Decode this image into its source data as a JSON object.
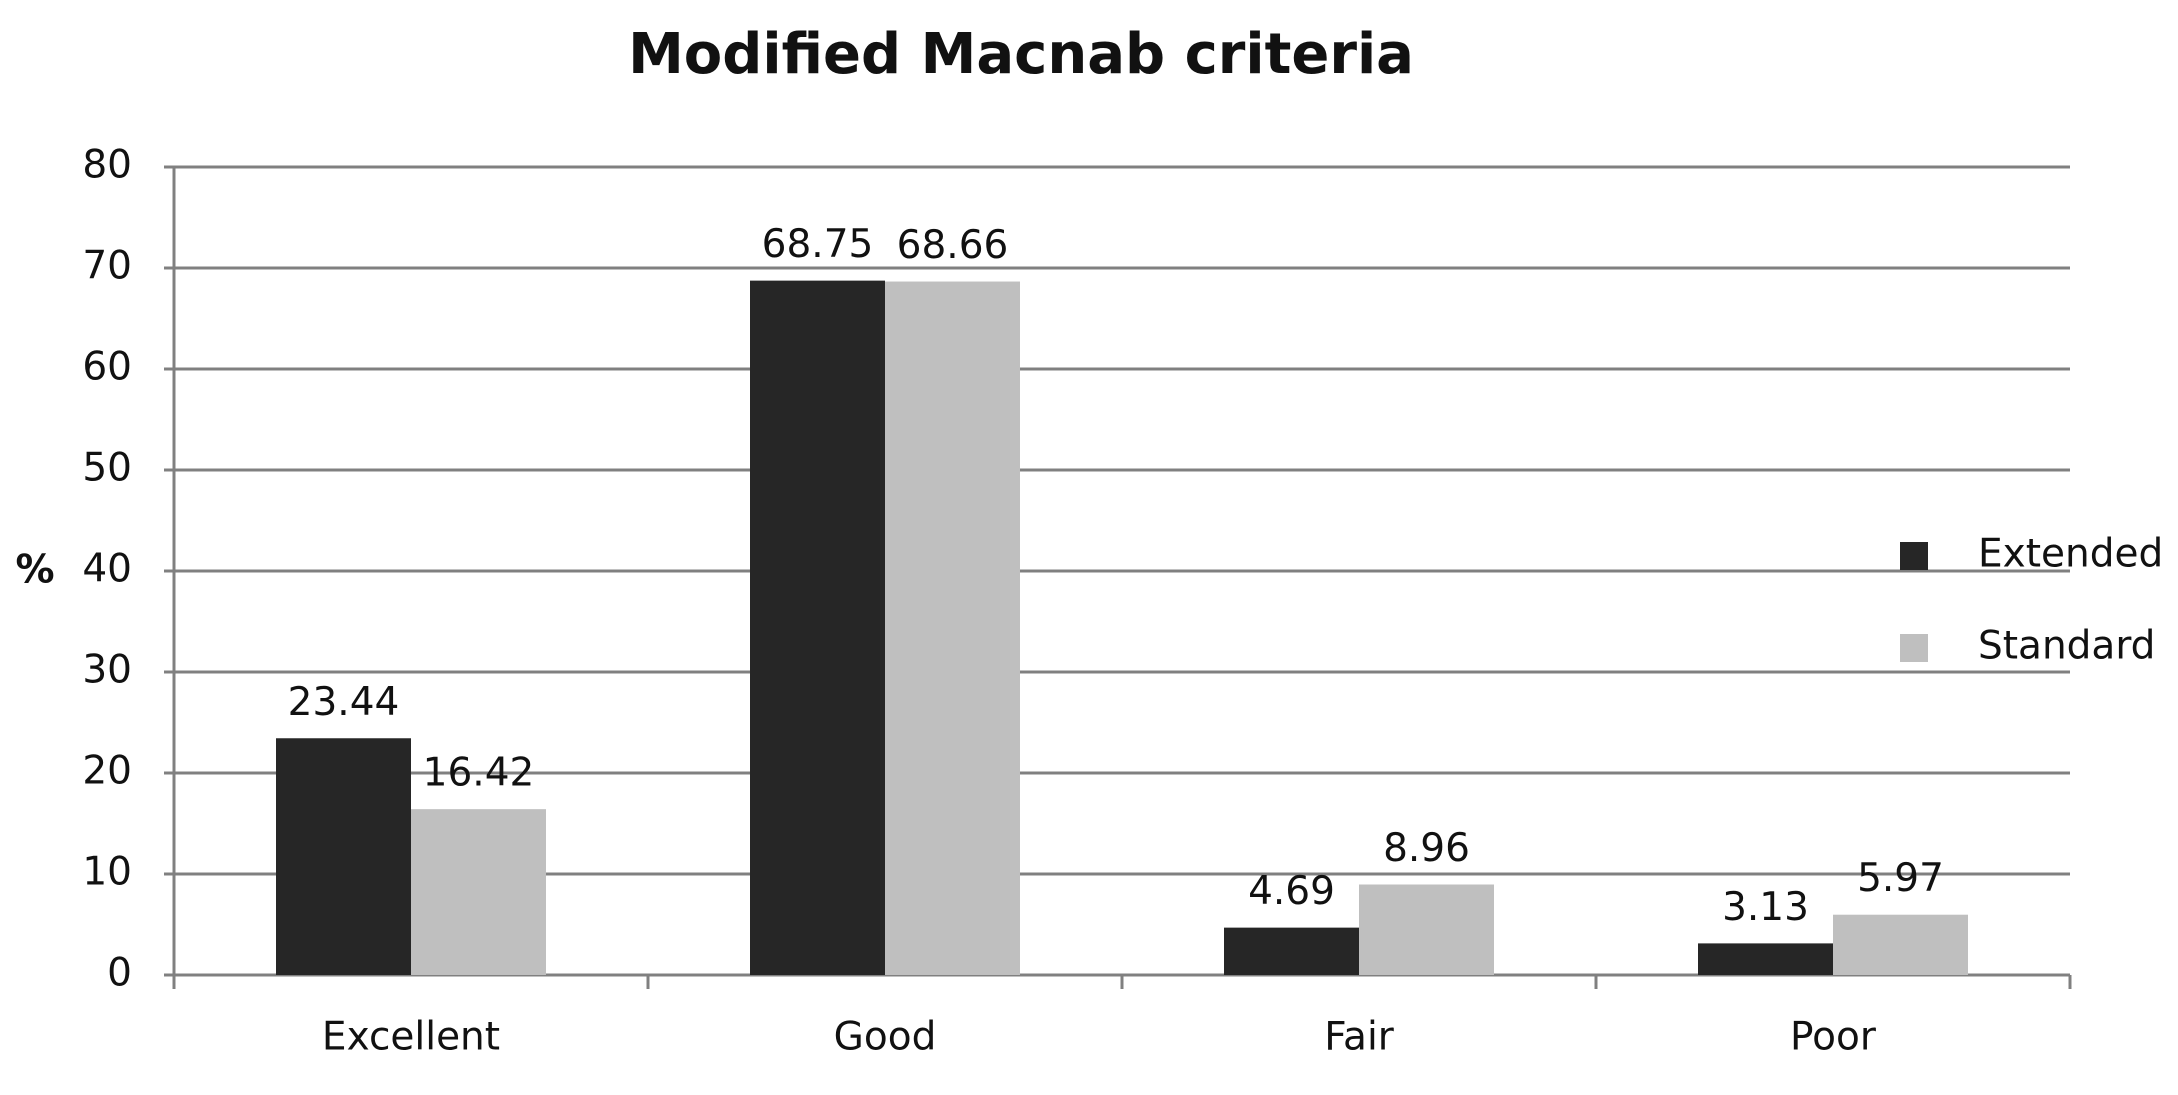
{
  "chart_data": {
    "type": "bar",
    "title": "Modified Macnab criteria",
    "y_label": "%",
    "categories": [
      "Excellent",
      "Good",
      "Fair",
      "Poor"
    ],
    "series": [
      {
        "name": "Extended",
        "color": "#262626",
        "values": [
          23.44,
          68.75,
          4.69,
          3.13
        ]
      },
      {
        "name": "Standard",
        "color": "#bfbfbf",
        "values": [
          16.42,
          68.66,
          8.96,
          5.97
        ]
      }
    ],
    "ylim": [
      0,
      80
    ],
    "yticks": [
      0,
      10,
      20,
      30,
      40,
      50,
      60,
      70,
      80
    ],
    "grid": true,
    "legend": "right"
  }
}
